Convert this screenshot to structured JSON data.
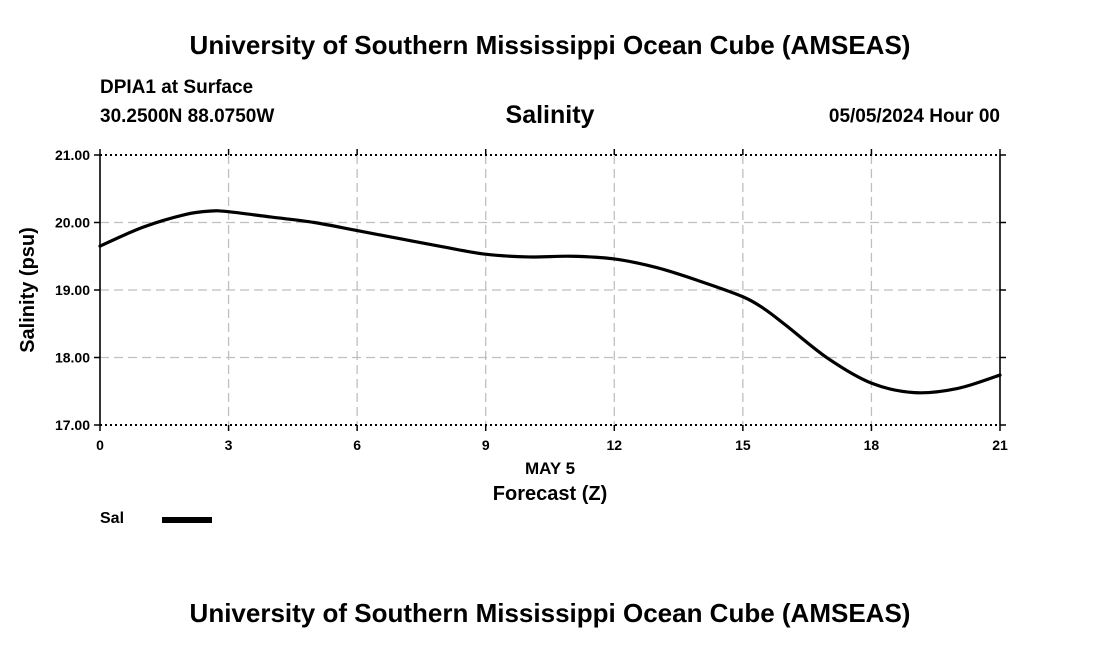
{
  "header": {
    "title_top": "University of Southern Mississippi Ocean Cube (AMSEAS)",
    "station": "DPIA1 at Surface",
    "coords": "30.2500N  88.0750W",
    "chart_title": "Salinity",
    "datetime": "05/05/2024 Hour 00",
    "title_bottom": "University of Southern Mississippi Ocean Cube (AMSEAS)"
  },
  "legend": {
    "label": "Sal"
  },
  "chart_data": {
    "type": "line",
    "title": "Salinity",
    "xlabel": "Forecast (Z)",
    "xsublabel": "MAY 5",
    "ylabel": "Salinity (psu)",
    "xlim": [
      0,
      21
    ],
    "ylim": [
      17,
      21
    ],
    "xticks": [
      0,
      3,
      6,
      9,
      12,
      15,
      18,
      21
    ],
    "xtick_labels": [
      "0",
      "3",
      "6",
      "9",
      "12",
      "15",
      "18",
      "21"
    ],
    "yticks": [
      17,
      18,
      19,
      20,
      21
    ],
    "ytick_labels": [
      "17.00",
      "18.00",
      "19.00",
      "20.00",
      "21.00"
    ],
    "grid": true,
    "series": [
      {
        "name": "Sal",
        "color": "#000000",
        "x": [
          0,
          1,
          2,
          2.6,
          3,
          4,
          5,
          6,
          7,
          8,
          9,
          10,
          11,
          12,
          13,
          14,
          15,
          15.5,
          16,
          17,
          18,
          19,
          20,
          21
        ],
        "y": [
          19.65,
          19.93,
          20.12,
          20.17,
          20.16,
          20.08,
          20.0,
          19.88,
          19.76,
          19.64,
          19.53,
          19.49,
          19.5,
          19.46,
          19.33,
          19.13,
          18.9,
          18.72,
          18.48,
          17.98,
          17.62,
          17.48,
          17.54,
          17.74
        ]
      }
    ]
  }
}
